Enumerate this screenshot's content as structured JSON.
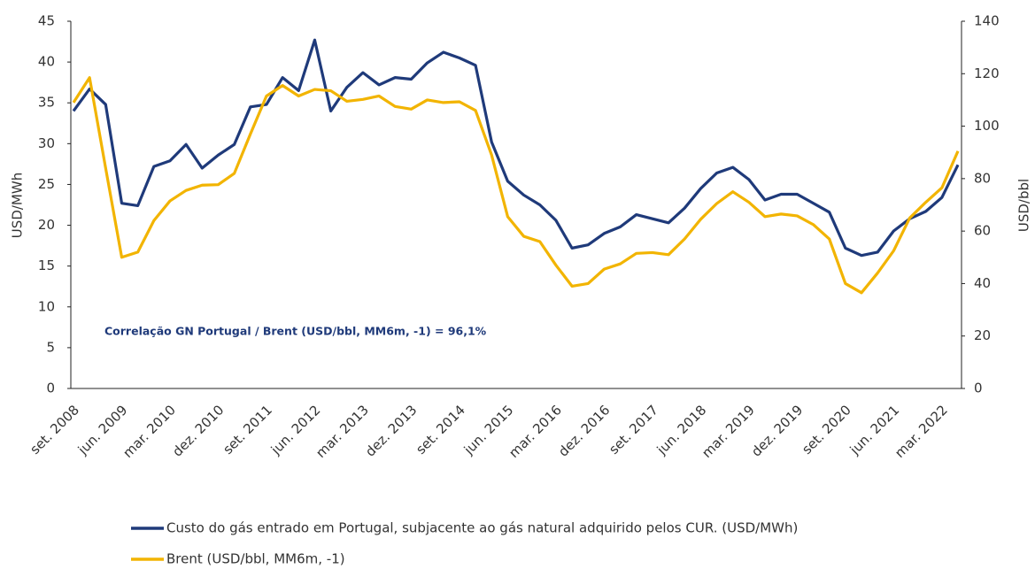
{
  "chart_data": {
    "type": "line",
    "y_label": "USD/MWh",
    "y2_label": "USD/bbl",
    "annotation": "Correlação GN Portugal / Brent (USD/bbl, MM6m, -1) = 96,1%",
    "categories": [
      "set. 2008",
      null,
      null,
      "jun. 2009",
      null,
      null,
      "mar. 2010",
      null,
      null,
      "dez. 2010",
      null,
      null,
      "set. 2011",
      null,
      null,
      "jun. 2012",
      null,
      null,
      "mar. 2013",
      null,
      null,
      "dez. 2013",
      null,
      null,
      "set. 2014",
      null,
      null,
      "jun. 2015",
      null,
      null,
      "mar. 2016",
      null,
      null,
      "dez. 2016",
      null,
      null,
      "set. 2017",
      null,
      null,
      "jun. 2018",
      null,
      null,
      "mar. 2019",
      null,
      null,
      "dez. 2019",
      null,
      null,
      "set. 2020",
      null,
      null,
      "jun. 2021",
      null,
      null,
      "mar. 2022",
      null
    ],
    "series": [
      {
        "name": "Custo do gás entrado em Portugal, subjacente ao gás natural adquirido pelos CUR. (USD/MWh)",
        "color": "#1f3a7a",
        "axis": "y",
        "values": [
          34.0,
          36.7,
          34.8,
          22.7,
          22.4,
          27.2,
          27.9,
          29.9,
          27.0,
          28.6,
          29.9,
          34.5,
          34.8,
          38.1,
          36.5,
          42.7,
          34.0,
          36.9,
          38.7,
          37.2,
          38.1,
          37.9,
          39.9,
          41.2,
          40.5,
          39.6,
          30.2,
          25.4,
          23.7,
          22.5,
          20.6,
          17.2,
          17.6,
          19.0,
          19.8,
          21.3,
          20.8,
          20.3,
          22.1,
          24.5,
          26.4,
          27.1,
          25.6,
          23.1,
          23.8,
          23.8,
          22.7,
          21.6,
          17.2,
          16.3,
          16.7,
          19.3,
          20.8,
          21.7,
          23.4,
          27.4
        ]
      },
      {
        "name": "Brent (USD/bbl, MM6m, -1)",
        "color": "#f2b400",
        "axis": "y2",
        "values": [
          109,
          118.5,
          84,
          50,
          52,
          64,
          71.5,
          75.5,
          77.5,
          77.7,
          82,
          97,
          111.5,
          115.5,
          111.5,
          114,
          113.5,
          109.5,
          110.2,
          111.5,
          107.5,
          106.5,
          110,
          109,
          109.3,
          106,
          89,
          65.5,
          58,
          56,
          47,
          39,
          40,
          45.5,
          47.5,
          51.5,
          51.8,
          51,
          57,
          64.5,
          70.5,
          75,
          71,
          65.5,
          66.5,
          65.8,
          62.5,
          57,
          40,
          36.5,
          44,
          52.5,
          65,
          71,
          76.5,
          90.5
        ]
      }
    ],
    "ylim": [
      0,
      45
    ],
    "yticks": [
      0,
      5,
      10,
      15,
      20,
      25,
      30,
      35,
      40,
      45
    ],
    "y2lim": [
      0,
      140
    ],
    "y2ticks": [
      0,
      20,
      40,
      60,
      80,
      100,
      120,
      140
    ]
  }
}
